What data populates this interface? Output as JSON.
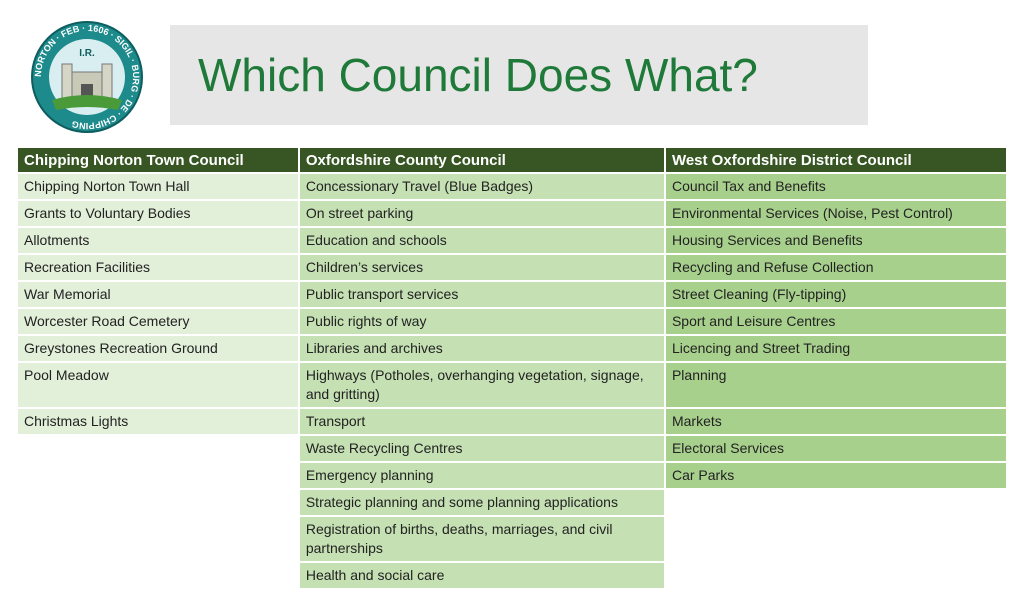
{
  "header": {
    "title": "Which Council Does What?",
    "logo": {
      "ring_text": "NORTON · FEB · 1606 · SIGIL · BURG · DE · CHIPPING",
      "initials": "I.R."
    }
  },
  "table": {
    "columns": [
      {
        "header": "Chipping Norton Town Council",
        "items": [
          "Chipping Norton Town Hall",
          "Grants to Voluntary Bodies",
          "Allotments",
          "Recreation Facilities",
          "War Memorial",
          "Worcester Road Cemetery",
          "Greystones Recreation Ground",
          "Pool Meadow",
          "Christmas Lights"
        ]
      },
      {
        "header": "Oxfordshire County Council",
        "items": [
          "Concessionary Travel (Blue Badges)",
          "On street parking",
          "Education and schools",
          "Children’s services",
          "Public transport services",
          "Public rights of way",
          "Libraries and archives",
          "Highways (Potholes, overhanging vegetation, signage, and gritting)",
          "Transport",
          "Waste Recycling Centres",
          "Emergency planning",
          "Strategic planning and some planning applications",
          "Registration of births, deaths, marriages, and civil partnerships",
          "Health and social care"
        ]
      },
      {
        "header": "West Oxfordshire District Council",
        "items": [
          "Council Tax and Benefits",
          "Environmental Services (Noise, Pest Control)",
          "Housing Services and Benefits",
          "Recycling and Refuse Collection",
          "Street Cleaning (Fly-tipping)",
          "Sport and Leisure Centres",
          "Licencing and Street Trading",
          "Planning",
          "Markets",
          "Electoral Services",
          "Car Parks"
        ]
      }
    ]
  }
}
